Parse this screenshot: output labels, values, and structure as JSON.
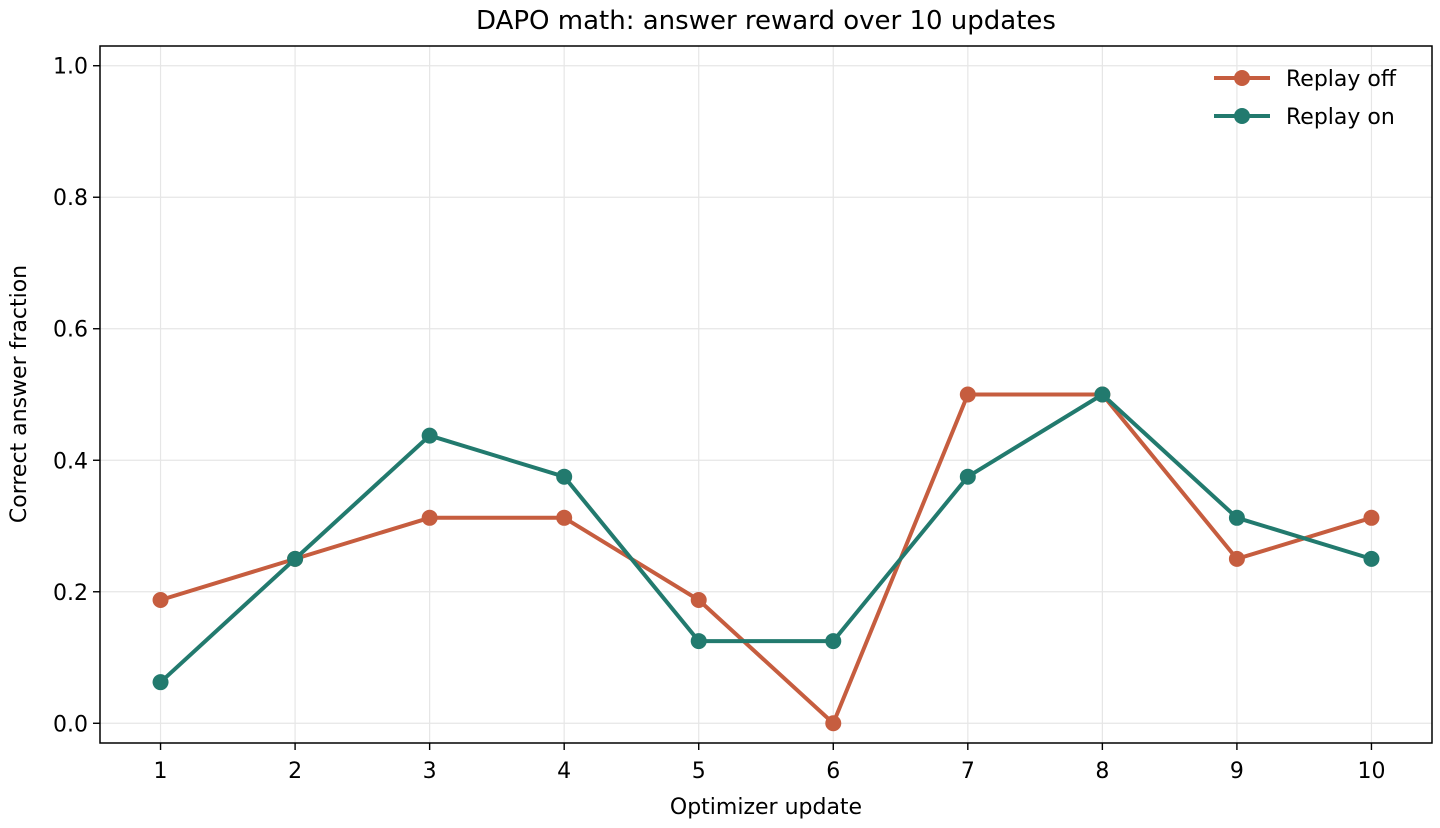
{
  "chart_data": {
    "type": "line",
    "title": "DAPO math: answer reward over 10 updates",
    "xlabel": "Optimizer update",
    "ylabel": "Correct answer fraction",
    "x": [
      1,
      2,
      3,
      4,
      5,
      6,
      7,
      8,
      9,
      10
    ],
    "xlim": [
      0.55,
      10.45
    ],
    "ylim": [
      -0.03,
      1.03
    ],
    "yticks": [
      0.0,
      0.2,
      0.4,
      0.6,
      0.8,
      1.0
    ],
    "ytick_labels": [
      "0.0",
      "0.2",
      "0.4",
      "0.6",
      "0.8",
      "1.0"
    ],
    "xtick_labels": [
      "1",
      "2",
      "3",
      "4",
      "5",
      "6",
      "7",
      "8",
      "9",
      "10"
    ],
    "grid": true,
    "legend": "top-right",
    "series": [
      {
        "name": "Replay off",
        "color": "#c65d3f",
        "values": [
          0.1875,
          0.25,
          0.3125,
          0.3125,
          0.1875,
          0.0,
          0.5,
          0.5,
          0.25,
          0.3125
        ]
      },
      {
        "name": "Replay on",
        "color": "#227a6e",
        "values": [
          0.0625,
          0.25,
          0.4375,
          0.375,
          0.125,
          0.125,
          0.375,
          0.5,
          0.3125,
          0.25
        ]
      }
    ]
  }
}
